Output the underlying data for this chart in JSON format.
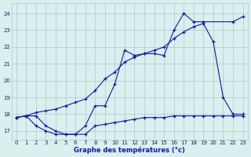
{
  "title": "Graphe des températures (°c)",
  "bg_color": "#d8f0ee",
  "grid_color": "#a8cccc",
  "line_color": "#1515aa",
  "x_labels": [
    "0",
    "1",
    "2",
    "3",
    "4",
    "5",
    "6",
    "7",
    "8",
    "9",
    "10",
    "11",
    "12",
    "13",
    "14",
    "15",
    "16",
    "17",
    "18",
    "19",
    "20",
    "21",
    "22",
    "23"
  ],
  "y_ticks": [
    17,
    18,
    19,
    20,
    21,
    22,
    23,
    24
  ],
  "y_min": 16.5,
  "y_max": 24.6,
  "series1_x": [
    0,
    1,
    2,
    3,
    4,
    5,
    6,
    7,
    8,
    9,
    10,
    11,
    12,
    13,
    14,
    15,
    16,
    17,
    18,
    19,
    20,
    21,
    22,
    23
  ],
  "series1_y": [
    17.8,
    17.9,
    17.9,
    17.3,
    17.0,
    16.8,
    16.8,
    16.8,
    17.3,
    17.4,
    17.5,
    17.6,
    17.7,
    17.8,
    17.8,
    17.8,
    17.9,
    17.9,
    17.9,
    17.9,
    17.9,
    17.9,
    17.9,
    17.9
  ],
  "series2_x": [
    0,
    1,
    2,
    3,
    4,
    5,
    6,
    7,
    8,
    9,
    10,
    11,
    12,
    13,
    14,
    15,
    16,
    17,
    18,
    19,
    20,
    21,
    22,
    23
  ],
  "series2_y": [
    17.8,
    17.9,
    18.1,
    18.2,
    18.3,
    18.5,
    18.7,
    18.9,
    19.4,
    20.1,
    20.5,
    21.1,
    21.4,
    21.6,
    21.8,
    22.0,
    22.5,
    22.9,
    23.2,
    23.4,
    22.3,
    19.0,
    18.0,
    18.0
  ],
  "series3_x": [
    0,
    1,
    2,
    3,
    4,
    5,
    6,
    7,
    8,
    9,
    10,
    11,
    12,
    13,
    14,
    15,
    16,
    17,
    18,
    19,
    20,
    21,
    22,
    23
  ],
  "series3_y": [
    17.8,
    17.9,
    17.3,
    17.0,
    16.8,
    16.8,
    16.8,
    17.3,
    18.5,
    18.5,
    19.8,
    21.8,
    21.5,
    21.6,
    21.6,
    21.5,
    23.0,
    24.0,
    23.5,
    23.5,
    null,
    null,
    23.5,
    23.8
  ]
}
